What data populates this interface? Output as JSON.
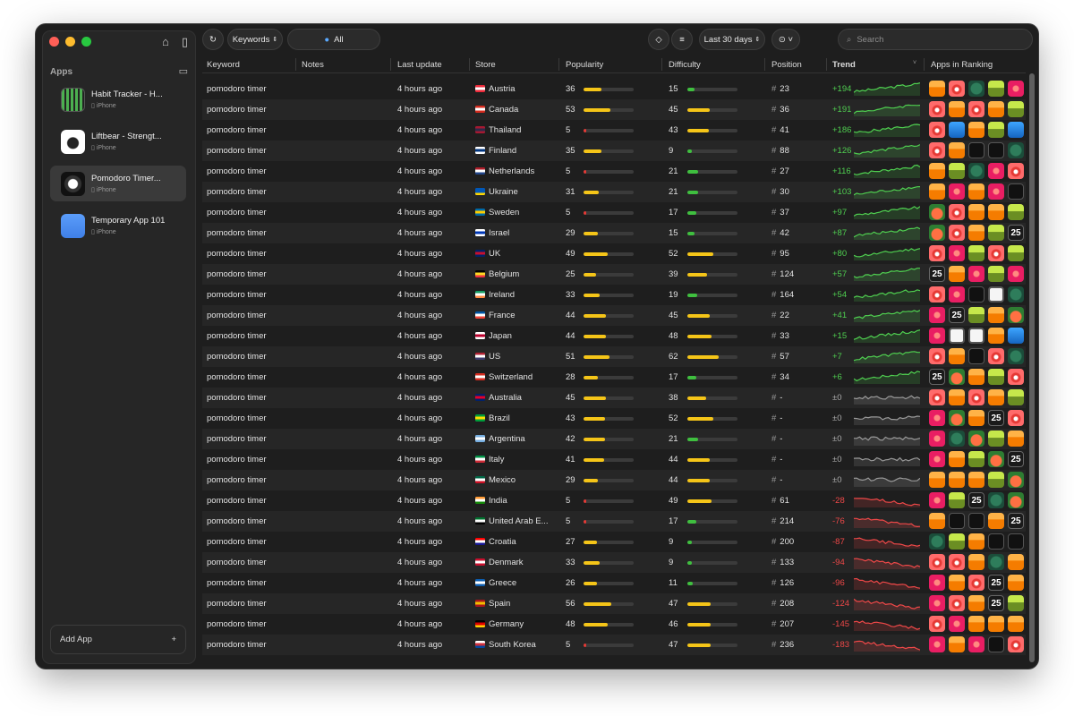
{
  "sidebar": {
    "section_label": "Apps",
    "apps": [
      {
        "name": "Habit Tracker - H...",
        "platform": "iPhone",
        "icon": "ic-habit"
      },
      {
        "name": "Liftbear - Strengt...",
        "platform": "iPhone",
        "icon": "ic-lift"
      },
      {
        "name": "Pomodoro Timer...",
        "platform": "iPhone",
        "icon": "ic-pomo",
        "selected": true
      },
      {
        "name": "Temporary App 101",
        "platform": "iPhone",
        "icon": "ic-temp"
      }
    ],
    "add_app_label": "Add App"
  },
  "toolbar": {
    "keywords_label": "Keywords",
    "all_label": "All",
    "date_range_label": "Last 30 days",
    "search_placeholder": "Search"
  },
  "table": {
    "headers": {
      "keyword": "Keyword",
      "notes": "Notes",
      "last_update": "Last update",
      "store": "Store",
      "popularity": "Popularity",
      "difficulty": "Difficulty",
      "position": "Position",
      "trend": "Trend",
      "apps_in_ranking": "Apps in Ranking"
    },
    "colors": {
      "bar_yellow": "#f5c518",
      "bar_green": "#3fbf3f",
      "bar_red": "#e53935"
    },
    "rows": [
      {
        "keyword": "pomodoro timer",
        "update": "4 hours ago",
        "store": "Austria",
        "flag": [
          "#ed2939",
          "#fff",
          "#ed2939"
        ],
        "pop": 36,
        "diff": 15,
        "pos": "23",
        "trend": "+194",
        "dir": "up",
        "icons": [
          "i-orange",
          "i-red",
          "i-teal",
          "i-greenlime",
          "i-pink"
        ]
      },
      {
        "keyword": "pomodoro timer",
        "update": "4 hours ago",
        "store": "Canada",
        "flag": [
          "#d52b1e",
          "#fff",
          "#d52b1e"
        ],
        "pop": 53,
        "diff": 45,
        "pos": "36",
        "trend": "+191",
        "dir": "up",
        "icons": [
          "i-red",
          "i-orange",
          "i-red",
          "i-orange",
          "i-greenlime"
        ]
      },
      {
        "keyword": "pomodoro timer",
        "update": "4 hours ago",
        "store": "Thailand",
        "flag": [
          "#a51931",
          "#2d2a4a",
          "#a51931"
        ],
        "pop": 5,
        "diff": 43,
        "pos": "41",
        "trend": "+186",
        "dir": "up",
        "icons": [
          "i-red",
          "i-blue",
          "i-orange",
          "i-greenlime",
          "i-blue"
        ]
      },
      {
        "keyword": "pomodoro timer",
        "update": "4 hours ago",
        "store": "Finland",
        "flag": [
          "#fff",
          "#003580",
          "#fff"
        ],
        "pop": 35,
        "diff": 9,
        "pos": "88",
        "trend": "+126",
        "dir": "up",
        "icons": [
          "i-red",
          "i-orange",
          "i-dark",
          "i-dark",
          "i-teal"
        ]
      },
      {
        "keyword": "pomodoro timer",
        "update": "4 hours ago",
        "store": "Netherlands",
        "flag": [
          "#ae1c28",
          "#fff",
          "#21468b"
        ],
        "pop": 5,
        "diff": 21,
        "pos": "27",
        "trend": "+116",
        "dir": "up",
        "icons": [
          "i-orange",
          "i-greenlime",
          "i-teal",
          "i-pink",
          "i-red"
        ]
      },
      {
        "keyword": "pomodoro timer",
        "update": "4 hours ago",
        "store": "Ukraine",
        "flag": [
          "#0057b7",
          "#0057b7",
          "#ffd700"
        ],
        "pop": 31,
        "diff": 21,
        "pos": "30",
        "trend": "+103",
        "dir": "up",
        "icons": [
          "i-orange",
          "i-pink",
          "i-orange",
          "i-pink",
          "i-dark"
        ]
      },
      {
        "keyword": "pomodoro timer",
        "update": "4 hours ago",
        "store": "Sweden",
        "flag": [
          "#006aa7",
          "#fecc00",
          "#006aa7"
        ],
        "pop": 5,
        "diff": 17,
        "pos": "37",
        "trend": "+97",
        "dir": "up",
        "icons": [
          "i-tomato",
          "i-red",
          "i-orange",
          "i-orange",
          "i-greenlime"
        ]
      },
      {
        "keyword": "pomodoro timer",
        "update": "4 hours ago",
        "store": "Israel",
        "flag": [
          "#fff",
          "#0038b8",
          "#fff"
        ],
        "pop": 29,
        "diff": 15,
        "pos": "42",
        "trend": "+87",
        "dir": "up",
        "icons": [
          "i-tomato",
          "i-red",
          "i-orange",
          "i-greenlime",
          "i-25"
        ]
      },
      {
        "keyword": "pomodoro timer",
        "update": "4 hours ago",
        "store": "UK",
        "flag": [
          "#012169",
          "#c8102e",
          "#012169"
        ],
        "pop": 49,
        "diff": 52,
        "pos": "95",
        "trend": "+80",
        "dir": "up",
        "icons": [
          "i-red",
          "i-pink",
          "i-greenlime",
          "i-red",
          "i-greenlime"
        ]
      },
      {
        "keyword": "pomodoro timer",
        "update": "4 hours ago",
        "store": "Belgium",
        "flag": [
          "#000",
          "#fdda24",
          "#ef3340"
        ],
        "pop": 25,
        "diff": 39,
        "pos": "124",
        "trend": "+57",
        "dir": "up",
        "icons": [
          "i-25",
          "i-orange",
          "i-pink",
          "i-greenlime",
          "i-pink"
        ]
      },
      {
        "keyword": "pomodoro timer",
        "update": "4 hours ago",
        "store": "Ireland",
        "flag": [
          "#169b62",
          "#fff",
          "#ff883e"
        ],
        "pop": 33,
        "diff": 19,
        "pos": "164",
        "trend": "+54",
        "dir": "up",
        "icons": [
          "i-red",
          "i-pink",
          "i-dark",
          "i-white",
          "i-teal"
        ]
      },
      {
        "keyword": "pomodoro timer",
        "update": "4 hours ago",
        "store": "France",
        "flag": [
          "#0055a4",
          "#fff",
          "#ef4135"
        ],
        "pop": 44,
        "diff": 45,
        "pos": "22",
        "trend": "+41",
        "dir": "up",
        "icons": [
          "i-pink",
          "i-25",
          "i-greenlime",
          "i-orange",
          "i-tomato"
        ]
      },
      {
        "keyword": "pomodoro timer",
        "update": "4 hours ago",
        "store": "Japan",
        "flag": [
          "#fff",
          "#bc002d",
          "#fff"
        ],
        "pop": 44,
        "diff": 48,
        "pos": "33",
        "trend": "+15",
        "dir": "up",
        "icons": [
          "i-pink",
          "i-white",
          "i-white",
          "i-orange",
          "i-blue"
        ]
      },
      {
        "keyword": "pomodoro timer",
        "update": "4 hours ago",
        "store": "US",
        "flag": [
          "#b22234",
          "#fff",
          "#3c3b6e"
        ],
        "pop": 51,
        "diff": 62,
        "pos": "57",
        "trend": "+7",
        "dir": "up",
        "icons": [
          "i-red",
          "i-orange",
          "i-dark",
          "i-red",
          "i-teal"
        ]
      },
      {
        "keyword": "pomodoro timer",
        "update": "4 hours ago",
        "store": "Switzerland",
        "flag": [
          "#d52b1e",
          "#fff",
          "#d52b1e"
        ],
        "pop": 28,
        "diff": 17,
        "pos": "34",
        "trend": "+6",
        "dir": "up",
        "icons": [
          "i-25",
          "i-tomato",
          "i-orange",
          "i-greenlime",
          "i-red"
        ]
      },
      {
        "keyword": "pomodoro timer",
        "update": "4 hours ago",
        "store": "Australia",
        "flag": [
          "#012169",
          "#e4002b",
          "#012169"
        ],
        "pop": 45,
        "diff": 38,
        "pos": "-",
        "trend": "±0",
        "dir": "flat",
        "icons": [
          "i-red",
          "i-orange",
          "i-red",
          "i-orange",
          "i-greenlime"
        ]
      },
      {
        "keyword": "pomodoro timer",
        "update": "4 hours ago",
        "store": "Brazil",
        "flag": [
          "#009c3b",
          "#ffdf00",
          "#009c3b"
        ],
        "pop": 43,
        "diff": 52,
        "pos": "-",
        "trend": "±0",
        "dir": "flat",
        "icons": [
          "i-pink",
          "i-tomato",
          "i-orange",
          "i-25",
          "i-red"
        ]
      },
      {
        "keyword": "pomodoro timer",
        "update": "4 hours ago",
        "store": "Argentina",
        "flag": [
          "#74acdf",
          "#fff",
          "#74acdf"
        ],
        "pop": 42,
        "diff": 21,
        "pos": "-",
        "trend": "±0",
        "dir": "flat",
        "icons": [
          "i-pink",
          "i-teal",
          "i-tomato",
          "i-greenlime",
          "i-orange"
        ]
      },
      {
        "keyword": "pomodoro timer",
        "update": "4 hours ago",
        "store": "Italy",
        "flag": [
          "#009246",
          "#fff",
          "#ce2b37"
        ],
        "pop": 41,
        "diff": 44,
        "pos": "-",
        "trend": "±0",
        "dir": "flat",
        "icons": [
          "i-pink",
          "i-orange",
          "i-greenlime",
          "i-tomato",
          "i-25"
        ]
      },
      {
        "keyword": "pomodoro timer",
        "update": "4 hours ago",
        "store": "Mexico",
        "flag": [
          "#006847",
          "#fff",
          "#ce1126"
        ],
        "pop": 29,
        "diff": 44,
        "pos": "-",
        "trend": "±0",
        "dir": "flat",
        "icons": [
          "i-orange",
          "i-orange",
          "i-orange",
          "i-greenlime",
          "i-tomato"
        ]
      },
      {
        "keyword": "pomodoro timer",
        "update": "4 hours ago",
        "store": "India",
        "flag": [
          "#ff9933",
          "#fff",
          "#138808"
        ],
        "pop": 5,
        "diff": 49,
        "pos": "61",
        "trend": "-28",
        "dir": "down",
        "icons": [
          "i-pink",
          "i-greenlime",
          "i-25",
          "i-teal",
          "i-tomato"
        ]
      },
      {
        "keyword": "pomodoro timer",
        "update": "4 hours ago",
        "store": "United Arab E...",
        "flag": [
          "#00732f",
          "#fff",
          "#000"
        ],
        "pop": 5,
        "diff": 17,
        "pos": "214",
        "trend": "-76",
        "dir": "down",
        "icons": [
          "i-orange",
          "i-dark",
          "i-dark",
          "i-orange",
          "i-25"
        ]
      },
      {
        "keyword": "pomodoro timer",
        "update": "4 hours ago",
        "store": "Croatia",
        "flag": [
          "#ff0000",
          "#fff",
          "#171796"
        ],
        "pop": 27,
        "diff": 9,
        "pos": "200",
        "trend": "-87",
        "dir": "down",
        "icons": [
          "i-teal",
          "i-greenlime",
          "i-orange",
          "i-dark",
          "i-dark"
        ]
      },
      {
        "keyword": "pomodoro timer",
        "update": "4 hours ago",
        "store": "Denmark",
        "flag": [
          "#c8102e",
          "#fff",
          "#c8102e"
        ],
        "pop": 33,
        "diff": 9,
        "pos": "133",
        "trend": "-94",
        "dir": "down",
        "icons": [
          "i-red",
          "i-red",
          "i-orange",
          "i-teal",
          "i-orange"
        ]
      },
      {
        "keyword": "pomodoro timer",
        "update": "4 hours ago",
        "store": "Greece",
        "flag": [
          "#0d5eaf",
          "#fff",
          "#0d5eaf"
        ],
        "pop": 26,
        "diff": 11,
        "pos": "126",
        "trend": "-96",
        "dir": "down",
        "icons": [
          "i-pink",
          "i-orange",
          "i-red",
          "i-25",
          "i-orange"
        ]
      },
      {
        "keyword": "pomodoro timer",
        "update": "4 hours ago",
        "store": "Spain",
        "flag": [
          "#aa151b",
          "#f1bf00",
          "#aa151b"
        ],
        "pop": 56,
        "diff": 47,
        "pos": "208",
        "trend": "-124",
        "dir": "down",
        "icons": [
          "i-pink",
          "i-red",
          "i-orange",
          "i-25",
          "i-greenlime"
        ]
      },
      {
        "keyword": "pomodoro timer",
        "update": "4 hours ago",
        "store": "Germany",
        "flag": [
          "#000",
          "#dd0000",
          "#ffce00"
        ],
        "pop": 48,
        "diff": 46,
        "pos": "207",
        "trend": "-145",
        "dir": "down",
        "icons": [
          "i-red",
          "i-pink",
          "i-orange",
          "i-orange",
          "i-orange"
        ]
      },
      {
        "keyword": "pomodoro timer",
        "update": "4 hours ago",
        "store": "South Korea",
        "flag": [
          "#fff",
          "#cd2e3a",
          "#0047a0"
        ],
        "pop": 5,
        "diff": 47,
        "pos": "236",
        "trend": "-183",
        "dir": "down",
        "icons": [
          "i-pink",
          "i-orange",
          "i-pink",
          "i-dark",
          "i-red"
        ]
      }
    ]
  }
}
